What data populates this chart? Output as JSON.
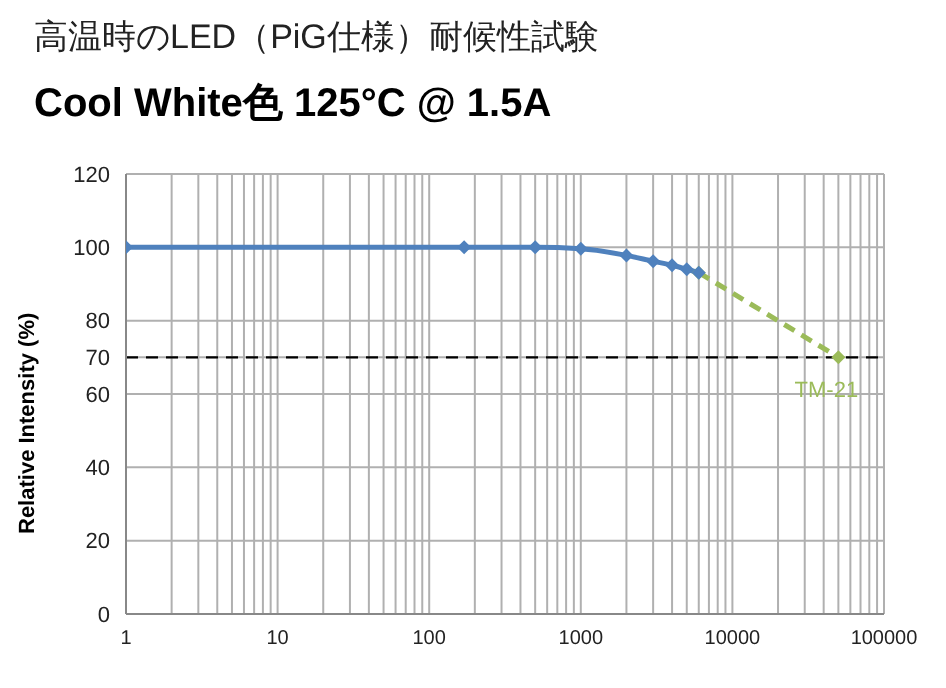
{
  "chart_data": {
    "type": "line",
    "title": "高温時のLED（PiG仕様）耐候性試験",
    "subtitle": "Cool White色 125°C @ 1.5A",
    "ylabel": "Relative Intensity (%)",
    "log": "x",
    "xlim": [
      1,
      100000
    ],
    "xticks": [
      1,
      {
        "value": 2,
        "label": null
      },
      {
        "value": 3,
        "label": null
      },
      {
        "value": 4,
        "label": null
      },
      {
        "value": 5,
        "label": null
      },
      {
        "value": 6,
        "label": null
      },
      {
        "value": 7,
        "label": null
      },
      {
        "value": 8,
        "label": null
      },
      {
        "value": 9,
        "label": null
      },
      10,
      {
        "value": 20,
        "label": null
      },
      {
        "value": 30,
        "label": null
      },
      {
        "value": 40,
        "label": null
      },
      {
        "value": 50,
        "label": null
      },
      {
        "value": 60,
        "label": null
      },
      {
        "value": 70,
        "label": null
      },
      {
        "value": 80,
        "label": null
      },
      {
        "value": 90,
        "label": null
      },
      100,
      {
        "value": 200,
        "label": null
      },
      {
        "value": 300,
        "label": null
      },
      {
        "value": 400,
        "label": null
      },
      {
        "value": 500,
        "label": null
      },
      {
        "value": 600,
        "label": null
      },
      {
        "value": 700,
        "label": null
      },
      {
        "value": 800,
        "label": null
      },
      {
        "value": 900,
        "label": null
      },
      1000,
      {
        "value": 2000,
        "label": null
      },
      {
        "value": 3000,
        "label": null
      },
      {
        "value": 4000,
        "label": null
      },
      {
        "value": 5000,
        "label": null
      },
      {
        "value": 6000,
        "label": null
      },
      {
        "value": 7000,
        "label": null
      },
      {
        "value": 8000,
        "label": null
      },
      {
        "value": 9000,
        "label": null
      },
      10000,
      {
        "value": 20000,
        "label": null
      },
      {
        "value": 30000,
        "label": null
      },
      {
        "value": 40000,
        "label": null
      },
      {
        "value": 50000,
        "label": null
      },
      {
        "value": 60000,
        "label": null
      },
      {
        "value": 70000,
        "label": null
      },
      {
        "value": 80000,
        "label": null
      },
      {
        "value": 90000,
        "label": null
      },
      100000
    ],
    "ylim": [
      0,
      120
    ],
    "yticks": [
      0,
      20,
      40,
      60,
      70,
      80,
      100,
      120
    ],
    "grid": true,
    "series": [
      {
        "color": "#4f81bd",
        "marker": "diamond",
        "line_style": "solid",
        "x": [
          1,
          170,
          500,
          1000,
          2000,
          3000,
          4000,
          5000,
          6000
        ],
        "values": [
          100,
          100,
          100,
          99.6,
          97.8,
          96.2,
          95.1,
          94,
          93.1
        ]
      },
      {
        "color": "#9bbb59",
        "marker": "diamond",
        "line_style": "dashed",
        "x": [
          6000,
          50000
        ],
        "values": [
          93.1,
          70
        ]
      }
    ],
    "ref_lines": [
      {
        "axis": "y",
        "value": 70,
        "color": "#000000",
        "line_style": "dashed"
      }
    ],
    "annotations": [
      {
        "text": "TM-21",
        "x": 50000,
        "y": 70
      }
    ]
  }
}
